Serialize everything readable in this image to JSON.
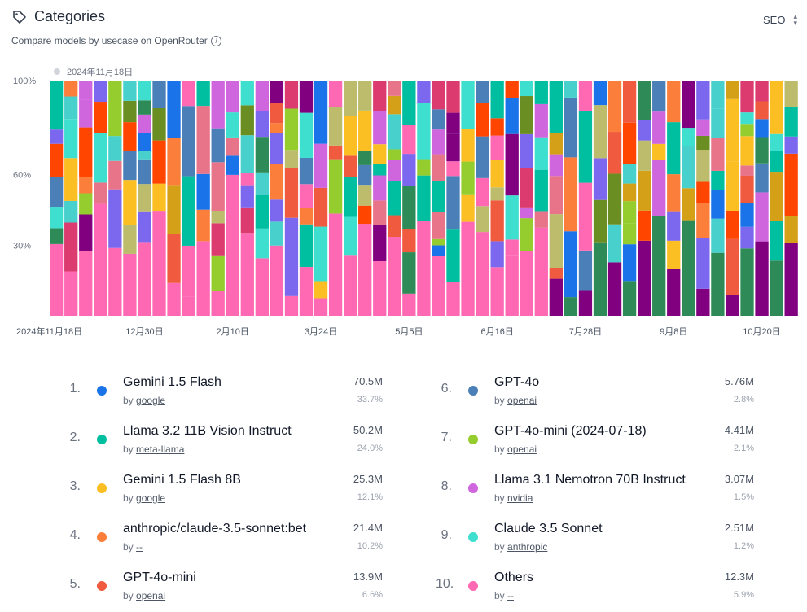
{
  "header": {
    "title": "Categories",
    "subtitle": "Compare models by usecase on OpenRouter",
    "select_value": "SEO"
  },
  "chart_data": {
    "type": "bar",
    "stacked": true,
    "normalized": true,
    "legend_chip": "2024年11月18日",
    "y_ticks": [
      "100%",
      "60%",
      "30%"
    ],
    "x_ticks": [
      "2024年11月18日",
      "12月30日",
      "2月10日",
      "3月24日",
      "5月5日",
      "6月16日",
      "7月28日",
      "9月8日",
      "10月20日"
    ],
    "num_bars": 51
  },
  "models": [
    {
      "rank": "1.",
      "name": "Gemini 1.5 Flash",
      "author": "google",
      "tokens": "70.5M",
      "share": "33.7%",
      "color": "#1a73e8"
    },
    {
      "rank": "2.",
      "name": "Llama 3.2 11B Vision Instruct",
      "author": "meta-llama",
      "tokens": "50.2M",
      "share": "24.0%",
      "color": "#00bfa0"
    },
    {
      "rank": "3.",
      "name": "Gemini 1.5 Flash 8B",
      "author": "google",
      "tokens": "25.3M",
      "share": "12.1%",
      "color": "#fbbf24"
    },
    {
      "rank": "4.",
      "name": "anthropic/claude-3.5-sonnet:bet",
      "author": "--",
      "tokens": "21.4M",
      "share": "10.2%",
      "color": "#fb7f3a"
    },
    {
      "rank": "5.",
      "name": "GPT-4o-mini",
      "author": "openai",
      "tokens": "13.9M",
      "share": "6.6%",
      "color": "#f05a3e"
    },
    {
      "rank": "6.",
      "name": "GPT-4o",
      "author": "openai",
      "tokens": "5.76M",
      "share": "2.8%",
      "color": "#4a7fb8"
    },
    {
      "rank": "7.",
      "name": "GPT-4o-mini (2024-07-18)",
      "author": "openai",
      "tokens": "4.41M",
      "share": "2.1%",
      "color": "#95cc2e"
    },
    {
      "rank": "8.",
      "name": "Llama 3.1 Nemotron 70B Instruct",
      "author": "nvidia",
      "tokens": "3.07M",
      "share": "1.5%",
      "color": "#d066dd"
    },
    {
      "rank": "9.",
      "name": "Claude 3.5 Sonnet",
      "author": "anthropic",
      "tokens": "2.51M",
      "share": "1.2%",
      "color": "#3fdfd0"
    },
    {
      "rank": "10.",
      "name": "Others",
      "author": "--",
      "tokens": "12.3M",
      "share": "5.9%",
      "color": "#ff69b4"
    }
  ],
  "by_prefix": "by"
}
